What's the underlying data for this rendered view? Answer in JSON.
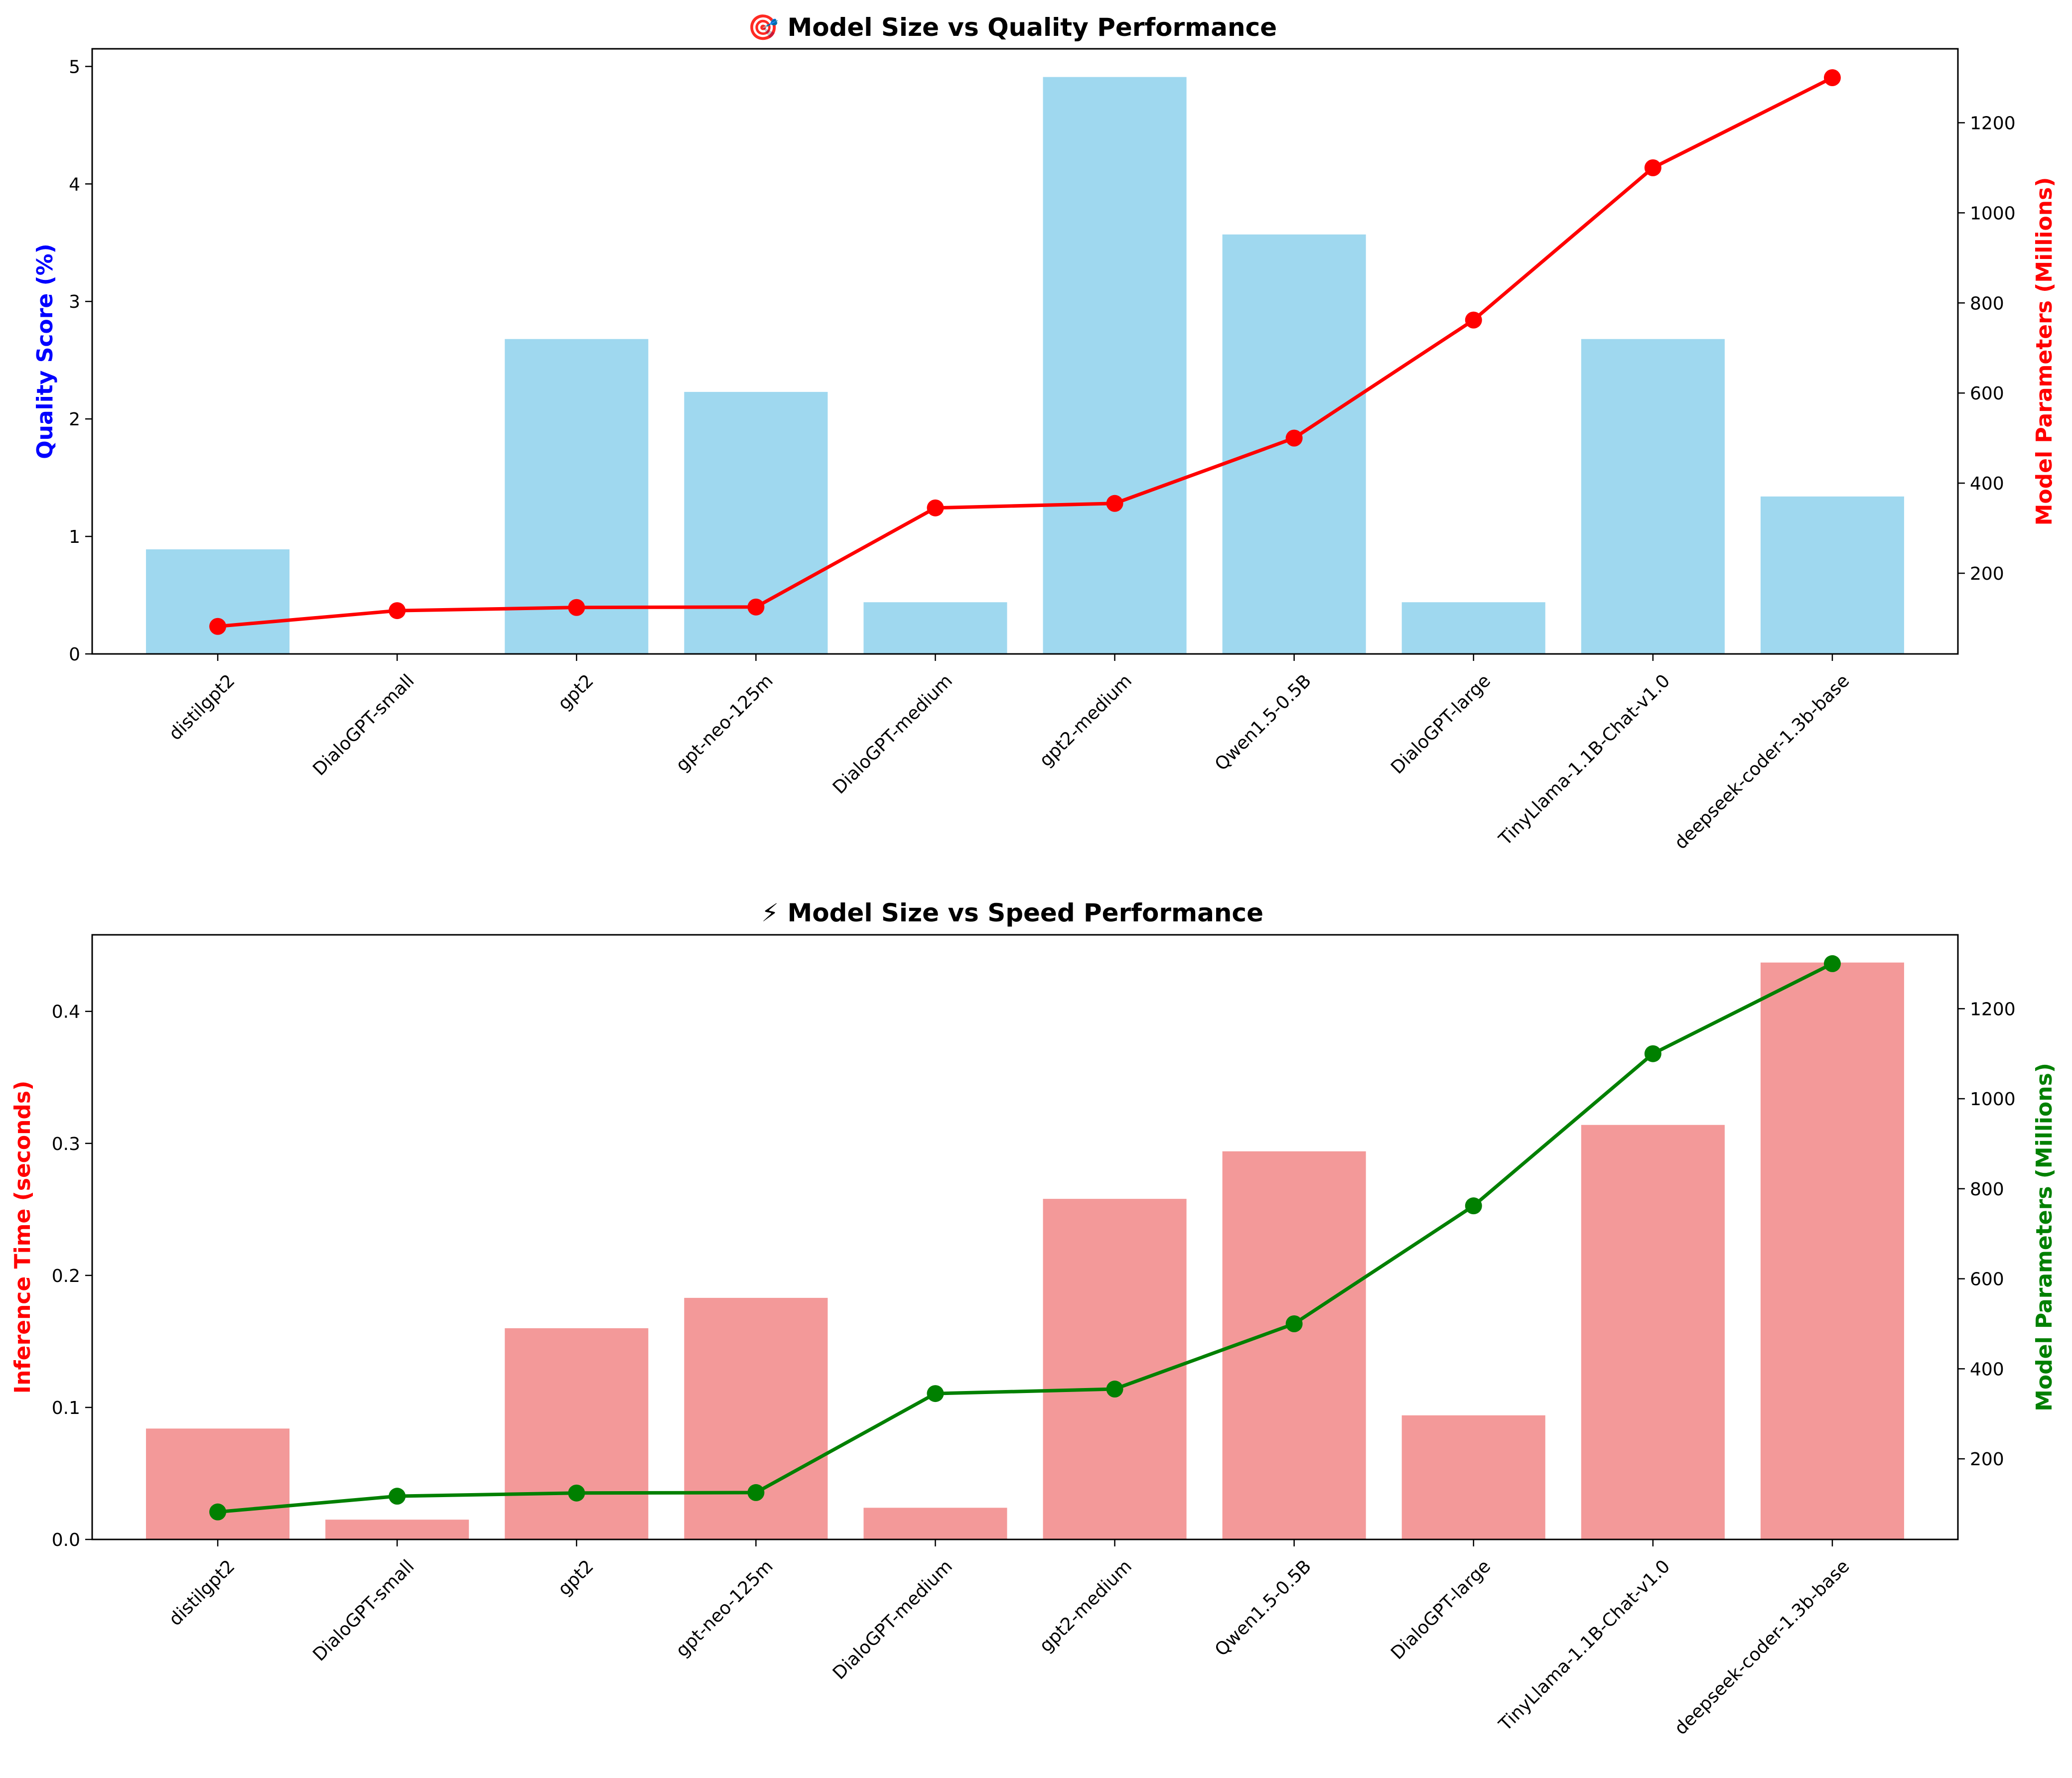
{
  "chart_data": [
    {
      "type": "bar+line",
      "title": "🎯 Model Size vs Quality Performance",
      "categories": [
        "distilgpt2",
        "DialoGPT-small",
        "gpt2",
        "gpt-neo-125m",
        "DialoGPT-medium",
        "gpt2-medium",
        "Qwen1.5-0.5B",
        "DialoGPT-large",
        "TinyLlama-1.1B-Chat-v1.0",
        "deepseek-coder-1.3b-base"
      ],
      "xlabel": "",
      "ylabel_left": "Quality Score (%)",
      "ylabel_right": "Model Parameters (Millions)",
      "ylim_left": [
        0,
        5.15
      ],
      "ylim_right": [
        20.9,
        1364.1
      ],
      "yticks_left": [
        0,
        1,
        2,
        3,
        4,
        5
      ],
      "yticks_right": [
        200,
        400,
        600,
        800,
        1000,
        1200
      ],
      "bar_series": {
        "values": [
          0.89,
          0.0,
          2.68,
          2.23,
          0.44,
          4.91,
          3.57,
          0.44,
          2.68,
          1.34
        ],
        "color": "#87ceeb"
      },
      "line_series": {
        "values": [
          82,
          117,
          124,
          125,
          345,
          355,
          500,
          762,
          1100,
          1300
        ],
        "color": "#ff0000"
      },
      "left_label_color": "#0000ff",
      "right_label_color": "#ff0000",
      "grid": false
    },
    {
      "type": "bar+line",
      "title": "⚡ Model Size vs Speed Performance",
      "categories": [
        "distilgpt2",
        "DialoGPT-small",
        "gpt2",
        "gpt-neo-125m",
        "DialoGPT-medium",
        "gpt2-medium",
        "Qwen1.5-0.5B",
        "DialoGPT-large",
        "TinyLlama-1.1B-Chat-v1.0",
        "deepseek-coder-1.3b-base"
      ],
      "xlabel": "",
      "ylabel_left": "Inference Time (seconds)",
      "ylabel_right": "Model Parameters (Millions)",
      "ylim_left": [
        0,
        0.458
      ],
      "ylim_right": [
        20.9,
        1364.1
      ],
      "yticks_left": [
        0.0,
        0.1,
        0.2,
        0.3,
        0.4
      ],
      "yticks_right": [
        200,
        400,
        600,
        800,
        1000,
        1200
      ],
      "bar_series": {
        "values": [
          0.084,
          0.015,
          0.16,
          0.183,
          0.024,
          0.258,
          0.294,
          0.094,
          0.314,
          0.437
        ],
        "color": "#f08080"
      },
      "line_series": {
        "values": [
          82,
          117,
          124,
          125,
          345,
          355,
          500,
          762,
          1100,
          1300
        ],
        "color": "#008000"
      },
      "left_label_color": "#ff0000",
      "right_label_color": "#008000",
      "grid": false
    }
  ]
}
